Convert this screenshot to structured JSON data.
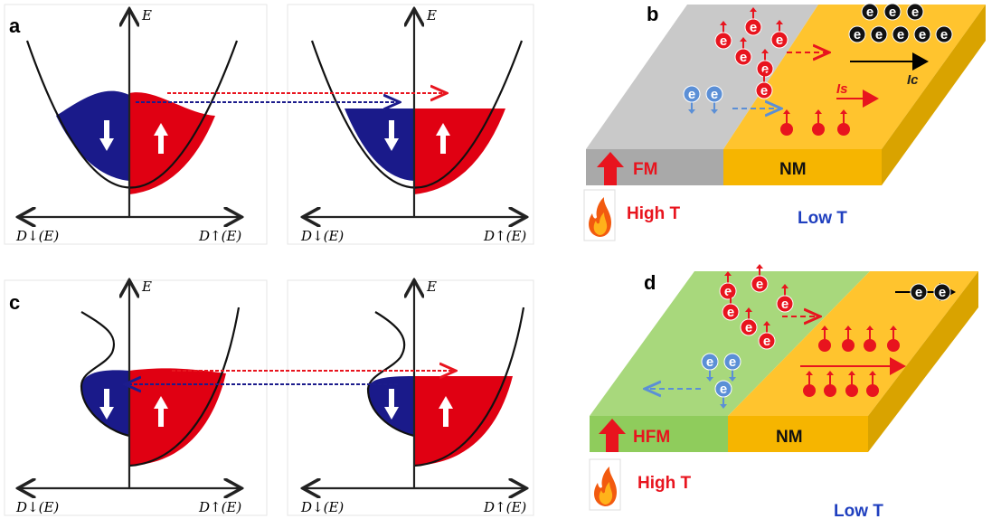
{
  "panels": {
    "a": {
      "label": "a",
      "plots": [
        {
          "energy_axis": "E",
          "dos_down": "D↓(E)",
          "dos_up": "D↑(E)"
        },
        {
          "energy_axis": "E",
          "dos_down": "D↓(E)",
          "dos_up": "D↑(E)"
        }
      ]
    },
    "b": {
      "label": "b",
      "left_layer": "FM",
      "right_layer": "NM",
      "hot_side": "High T",
      "cold_side": "Low T",
      "spin_current": "Is",
      "charge_current": "Ic",
      "electron": "e"
    },
    "c": {
      "label": "c",
      "plots": [
        {
          "energy_axis": "E",
          "dos_down": "D↓(E)",
          "dos_up": "D↑(E)"
        },
        {
          "energy_axis": "E",
          "dos_down": "D↓(E)",
          "dos_up": "D↑(E)"
        }
      ]
    },
    "d": {
      "label": "d",
      "left_layer": "HFM",
      "right_layer": "NM",
      "hot_side": "High T",
      "cold_side": "Low T",
      "electron": "e"
    }
  }
}
